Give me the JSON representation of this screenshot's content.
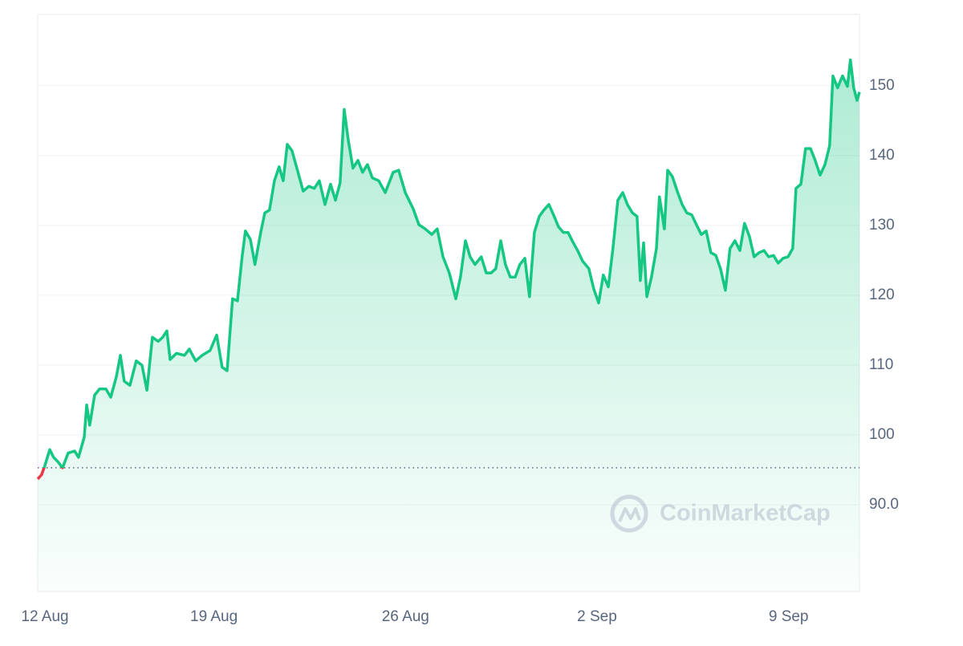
{
  "chart_data": {
    "type": "line",
    "x": [
      0.56,
      0.7,
      0.82,
      1.0,
      1.14,
      1.29,
      1.47,
      1.67,
      1.91,
      2.05,
      2.26,
      2.35,
      2.46,
      2.64,
      2.82,
      3.05,
      3.23,
      3.43,
      3.58,
      3.72,
      3.93,
      4.16,
      4.37,
      4.55,
      4.75,
      4.96,
      5.13,
      5.28,
      5.4,
      5.63,
      5.92,
      6.1,
      6.33,
      6.57,
      6.86,
      7.1,
      7.3,
      7.48,
      7.68,
      7.86,
      8.03,
      8.15,
      8.33,
      8.5,
      8.71,
      8.86,
      9.03,
      9.21,
      9.38,
      9.53,
      9.68,
      9.85,
      10.03,
      10.26,
      10.47,
      10.67,
      10.85,
      11.06,
      11.26,
      11.44,
      11.61,
      11.76,
      11.91,
      12.08,
      12.26,
      12.43,
      12.61,
      12.79,
      13.02,
      13.26,
      13.55,
      13.75,
      13.99,
      14.28,
      14.49,
      14.72,
      14.96,
      15.16,
      15.37,
      15.6,
      15.84,
      16.01,
      16.19,
      16.36,
      16.54,
      16.77,
      16.95,
      17.13,
      17.3,
      17.48,
      17.65,
      17.83,
      18.01,
      18.18,
      18.36,
      18.53,
      18.71,
      18.89,
      19.06,
      19.24,
      19.41,
      19.59,
      19.77,
      19.94,
      20.12,
      20.29,
      20.47,
      20.7,
      20.88,
      21.06,
      21.23,
      21.41,
      21.58,
      21.76,
      21.94,
      22.11,
      22.29,
      22.46,
      22.58,
      22.7,
      22.82,
      22.99,
      23.17,
      23.28,
      23.46,
      23.58,
      23.75,
      23.93,
      24.11,
      24.28,
      24.46,
      24.63,
      24.81,
      24.99,
      25.16,
      25.34,
      25.51,
      25.69,
      25.86,
      26.04,
      26.22,
      26.39,
      26.57,
      26.74,
      26.92,
      27.1,
      27.27,
      27.45,
      27.62,
      27.8,
      27.98,
      28.15,
      28.27,
      28.45,
      28.62,
      28.8,
      28.97,
      29.15,
      29.33,
      29.5,
      29.62,
      29.79,
      29.97,
      30.15,
      30.26,
      30.38,
      30.5,
      30.59
    ],
    "values": [
      93.7,
      94.3,
      95.6,
      97.9,
      96.8,
      96.2,
      95.3,
      97.4,
      97.7,
      96.8,
      99.7,
      104.3,
      101.4,
      105.7,
      106.6,
      106.6,
      105.4,
      108.3,
      111.4,
      107.7,
      107.1,
      110.6,
      110.0,
      106.4,
      114.0,
      113.4,
      114.0,
      114.9,
      110.8,
      111.7,
      111.4,
      112.3,
      110.6,
      111.4,
      112.1,
      114.3,
      109.7,
      109.2,
      119.5,
      119.2,
      125.5,
      129.2,
      128.0,
      124.4,
      129.0,
      131.8,
      132.2,
      136.4,
      138.4,
      136.4,
      141.6,
      140.7,
      138.2,
      134.9,
      135.6,
      135.3,
      136.4,
      133.0,
      135.9,
      133.6,
      136.1,
      146.6,
      142.2,
      138.2,
      139.3,
      137.6,
      138.7,
      136.8,
      136.4,
      134.7,
      137.6,
      137.9,
      134.7,
      132.4,
      130.1,
      129.5,
      128.7,
      129.5,
      125.5,
      123.2,
      119.5,
      122.6,
      127.8,
      125.5,
      124.4,
      125.5,
      123.2,
      123.2,
      123.8,
      127.8,
      124.4,
      122.6,
      122.6,
      124.4,
      125.3,
      119.8,
      129.0,
      131.3,
      132.2,
      133.0,
      131.5,
      129.8,
      129.0,
      129.0,
      127.6,
      126.4,
      124.9,
      123.8,
      120.9,
      118.9,
      122.9,
      121.2,
      126.7,
      133.6,
      134.7,
      133.0,
      131.8,
      131.3,
      122.1,
      127.5,
      119.8,
      122.6,
      126.7,
      134.1,
      129.5,
      137.9,
      137.0,
      134.9,
      133.0,
      131.8,
      131.5,
      130.1,
      128.7,
      129.2,
      126.1,
      125.7,
      123.8,
      120.7,
      126.7,
      127.8,
      126.4,
      130.3,
      128.4,
      125.5,
      126.1,
      126.4,
      125.5,
      125.7,
      124.6,
      125.3,
      125.5,
      126.7,
      135.3,
      135.9,
      141.0,
      141.0,
      139.3,
      137.2,
      138.7,
      141.4,
      151.4,
      149.7,
      151.4,
      149.9,
      153.7,
      149.7,
      147.9,
      149.1
    ],
    "baseline": 95.3,
    "up_color": "#16c784",
    "down_color": "#ea3943",
    "xlim": [
      0.56,
      30.59
    ],
    "xticks": [
      {
        "value": 0,
        "label": "12 Aug"
      },
      {
        "value": 7,
        "label": "19 Aug"
      },
      {
        "value": 14,
        "label": "26 Aug"
      },
      {
        "value": 21,
        "label": "2 Sep"
      },
      {
        "value": 28,
        "label": "9 Sep"
      }
    ],
    "ylim": [
      77.6,
      160.2
    ],
    "yticks": [
      {
        "value": 90,
        "label": "90.0"
      },
      100,
      110,
      120,
      130,
      140,
      150
    ],
    "grid": true,
    "watermark": "CoinMarketCap"
  }
}
